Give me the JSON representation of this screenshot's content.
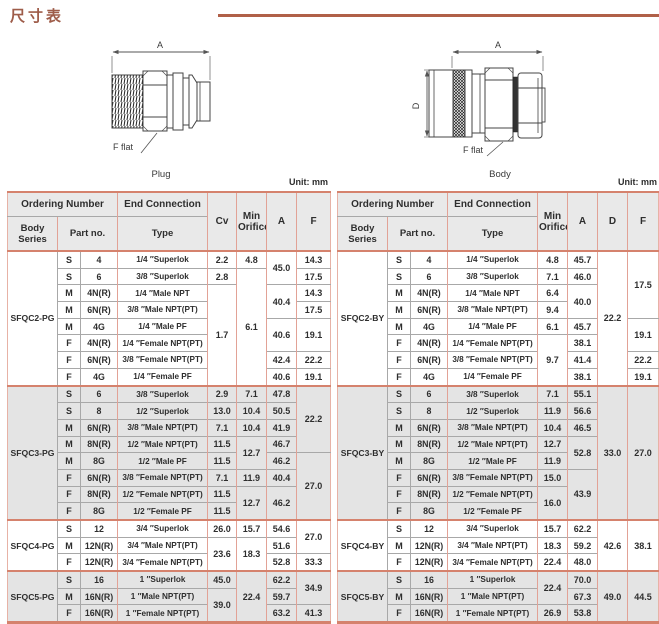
{
  "page": {
    "title": "尺寸表"
  },
  "diagrams": {
    "plug": {
      "caption": "Plug",
      "dim_a_label": "A",
      "flat_label": "F flat"
    },
    "body": {
      "caption": "Body",
      "dim_a_label": "A",
      "dim_d_label": "D",
      "flat_label": "F flat"
    }
  },
  "tables": {
    "plug": {
      "unit_label": "Unit: mm",
      "header": {
        "ordering_number": "Ordering Number",
        "end_connection": "End Connection",
        "body_series": "Body Series",
        "part_no": "Part no.",
        "type": "Type",
        "value_cols": [
          "Cv",
          "Min Orifice",
          "A",
          "F"
        ]
      },
      "sections": [
        {
          "series": "SFQC2-PG",
          "shaded": false,
          "rows": [
            {
              "cells": [
                "S",
                "4",
                "1/4 ″Superlok",
                "2.2",
                "4.8",
                {
                  "v": "45.0",
                  "rs": 2
                },
                "14.3"
              ]
            },
            {
              "cells": [
                "S",
                "6",
                "3/8 ″Superlok",
                "2.8",
                {
                  "v": "6.1",
                  "rs": 7
                },
                "17.5"
              ]
            },
            {
              "cells": [
                "M",
                "4N(R)",
                "1/4 ″Male NPT",
                {
                  "v": "1.7",
                  "rs": 6
                },
                {
                  "v": "40.4",
                  "rs": 2
                },
                "14.3"
              ]
            },
            {
              "cells": [
                "M",
                "6N(R)",
                "3/8 ″Male NPT(PT)",
                "17.5"
              ]
            },
            {
              "cells": [
                "M",
                "4G",
                "1/4 ″Male PF",
                {
                  "v": "40.6",
                  "rs": 2
                },
                {
                  "v": "19.1",
                  "rs": 2
                }
              ]
            },
            {
              "cells": [
                "F",
                "4N(R)",
                "1/4 ″Female NPT(PT)"
              ]
            },
            {
              "cells": [
                "F",
                "6N(R)",
                "3/8 ″Female NPT(PT)",
                "42.4",
                "22.2"
              ]
            },
            {
              "cells": [
                "F",
                "4G",
                "1/4 ″Female PF",
                "40.6",
                "19.1"
              ]
            }
          ]
        },
        {
          "series": "SFQC3-PG",
          "shaded": true,
          "rows": [
            {
              "cells": [
                "S",
                "6",
                "3/8 ″Superlok",
                "2.9",
                "7.1",
                "47.8",
                {
                  "v": "22.2",
                  "rs": 4
                }
              ]
            },
            {
              "cells": [
                "S",
                "8",
                "1/2 ″Superlok",
                "13.0",
                "10.4",
                "50.5"
              ]
            },
            {
              "cells": [
                "M",
                "6N(R)",
                "3/8 ″Male NPT(PT)",
                "7.1",
                "10.4",
                "41.9"
              ]
            },
            {
              "cells": [
                "M",
                "8N(R)",
                "1/2 ″Male NPT(PT)",
                "11.5",
                {
                  "v": "12.7",
                  "rs": 2
                },
                "46.7"
              ]
            },
            {
              "cells": [
                "M",
                "8G",
                "1/2 ″Male PF",
                "11.5",
                "46.2",
                {
                  "v": "27.0",
                  "rs": 4
                }
              ]
            },
            {
              "cells": [
                "F",
                "6N(R)",
                "3/8 ″Female NPT(PT)",
                "7.1",
                "11.9",
                "40.4"
              ]
            },
            {
              "cells": [
                "F",
                "8N(R)",
                "1/2 ″Female NPT(PT)",
                "11.5",
                {
                  "v": "12.7",
                  "rs": 2
                },
                {
                  "v": "46.2",
                  "rs": 2
                }
              ]
            },
            {
              "cells": [
                "F",
                "8G",
                "1/2 ″Female PF",
                "11.5"
              ]
            }
          ]
        },
        {
          "series": "SFQC4-PG",
          "shaded": false,
          "rows": [
            {
              "cells": [
                "S",
                "12",
                "3/4 ″Superlok",
                "26.0",
                "15.7",
                "54.6",
                {
                  "v": "27.0",
                  "rs": 2
                }
              ]
            },
            {
              "cells": [
                "M",
                "12N(R)",
                "3/4 ″Male NPT(PT)",
                {
                  "v": "23.6",
                  "rs": 2
                },
                {
                  "v": "18.3",
                  "rs": 2
                },
                "51.6"
              ]
            },
            {
              "cells": [
                "F",
                "12N(R)",
                "3/4 ″Female NPT(PT)",
                "52.8",
                "33.3"
              ]
            }
          ]
        },
        {
          "series": "SFQC5-PG",
          "shaded": true,
          "rows": [
            {
              "cells": [
                "S",
                "16",
                "1 ″Superlok",
                "45.0",
                {
                  "v": "22.4",
                  "rs": 3
                },
                "62.2",
                {
                  "v": "34.9",
                  "rs": 2
                }
              ]
            },
            {
              "cells": [
                "M",
                "16N(R)",
                "1 ″Male NPT(PT)",
                {
                  "v": "39.0",
                  "rs": 2
                },
                "59.7"
              ]
            },
            {
              "cells": [
                "F",
                "16N(R)",
                "1 ″Female NPT(PT)",
                "63.2",
                "41.3"
              ]
            }
          ]
        }
      ]
    },
    "body": {
      "unit_label": "Unit: mm",
      "header": {
        "ordering_number": "Ordering Number",
        "end_connection": "End Connection",
        "body_series": "Body Series",
        "part_no": "Part no.",
        "type": "Type",
        "value_cols": [
          "Min Orifice",
          "A",
          "D",
          "F"
        ]
      },
      "sections": [
        {
          "series": "SFQC2-BY",
          "shaded": false,
          "rows": [
            {
              "cells": [
                "S",
                "4",
                "1/4 ″Superlok",
                "4.8",
                "45.7",
                {
                  "v": "22.2",
                  "rs": 8
                },
                {
                  "v": "17.5",
                  "rs": 4
                }
              ]
            },
            {
              "cells": [
                "S",
                "6",
                "3/8 ″Superlok",
                "7.1",
                "46.0"
              ]
            },
            {
              "cells": [
                "M",
                "4N(R)",
                "1/4 ″Male NPT",
                "6.4",
                {
                  "v": "40.0",
                  "rs": 2
                }
              ]
            },
            {
              "cells": [
                "M",
                "6N(R)",
                "3/8 ″Male NPT(PT)",
                "9.4"
              ]
            },
            {
              "cells": [
                "M",
                "4G",
                "1/4 ″Male PF",
                "6.1",
                "45.7",
                {
                  "v": "19.1",
                  "rs": 2
                }
              ]
            },
            {
              "cells": [
                "F",
                "4N(R)",
                "1/4 ″Female NPT(PT)",
                {
                  "v": "9.7",
                  "rs": 3
                },
                "38.1"
              ]
            },
            {
              "cells": [
                "F",
                "6N(R)",
                "3/8 ″Female NPT(PT)",
                "41.4",
                "22.2"
              ]
            },
            {
              "cells": [
                "F",
                "4G",
                "1/4 ″Female PF",
                "38.1",
                "19.1"
              ]
            }
          ]
        },
        {
          "series": "SFQC3-BY",
          "shaded": true,
          "rows": [
            {
              "cells": [
                "S",
                "6",
                "3/8 ″Superlok",
                "7.1",
                "55.1",
                {
                  "v": "33.0",
                  "rs": 8
                },
                {
                  "v": "27.0",
                  "rs": 8
                }
              ]
            },
            {
              "cells": [
                "S",
                "8",
                "1/2 ″Superlok",
                "11.9",
                "56.6"
              ]
            },
            {
              "cells": [
                "M",
                "6N(R)",
                "3/8 ″Male NPT(PT)",
                "10.4",
                "46.5"
              ]
            },
            {
              "cells": [
                "M",
                "8N(R)",
                "1/2 ″Male NPT(PT)",
                "12.7",
                {
                  "v": "52.8",
                  "rs": 2
                }
              ]
            },
            {
              "cells": [
                "M",
                "8G",
                "1/2 ″Male PF",
                "11.9"
              ]
            },
            {
              "cells": [
                "F",
                "6N(R)",
                "3/8 ″Female NPT(PT)",
                "15.0",
                {
                  "v": "43.9",
                  "rs": 3
                }
              ]
            },
            {
              "cells": [
                "F",
                "8N(R)",
                "1/2 ″Female NPT(PT)",
                {
                  "v": "16.0",
                  "rs": 2
                }
              ]
            },
            {
              "cells": [
                "F",
                "8G",
                "1/2 ″Female PF"
              ]
            }
          ]
        },
        {
          "series": "SFQC4-BY",
          "shaded": false,
          "rows": [
            {
              "cells": [
                "S",
                "12",
                "3/4 ″Superlok",
                "15.7",
                "62.2",
                {
                  "v": "42.6",
                  "rs": 3
                },
                {
                  "v": "38.1",
                  "rs": 3
                }
              ]
            },
            {
              "cells": [
                "M",
                "12N(R)",
                "3/4 ″Male NPT(PT)",
                "18.3",
                "59.2"
              ]
            },
            {
              "cells": [
                "F",
                "12N(R)",
                "3/4 ″Female NPT(PT)",
                "22.4",
                "48.0"
              ]
            }
          ]
        },
        {
          "series": "SFQC5-BY",
          "shaded": true,
          "rows": [
            {
              "cells": [
                "S",
                "16",
                "1 ″Superlok",
                {
                  "v": "22.4",
                  "rs": 2
                },
                "70.0",
                {
                  "v": "49.0",
                  "rs": 3
                },
                {
                  "v": "44.5",
                  "rs": 3
                }
              ]
            },
            {
              "cells": [
                "M",
                "16N(R)",
                "1 ″Male NPT(PT)",
                "67.3"
              ]
            },
            {
              "cells": [
                "F",
                "16N(R)",
                "1 ″Female NPT(PT)",
                "26.9",
                "53.8"
              ]
            }
          ]
        }
      ]
    }
  }
}
